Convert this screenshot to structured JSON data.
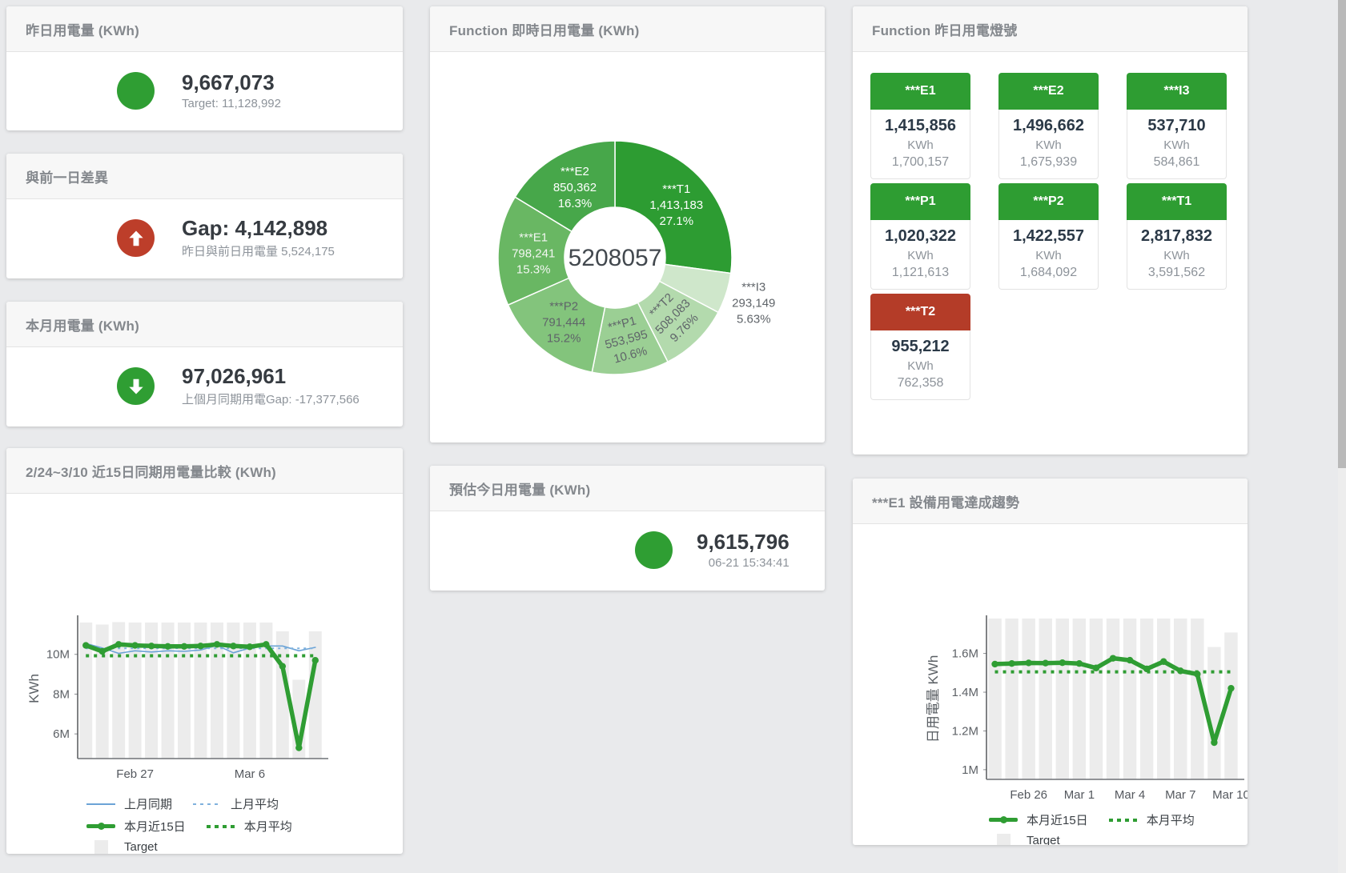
{
  "page": {
    "background": "#e9eaec"
  },
  "colors": {
    "green": "#2f9e33",
    "red": "#bd3e2a",
    "blue_line": "#6ba3d6",
    "target_bar": "#ececec"
  },
  "cards": {
    "yesterday": {
      "title": "昨日用電量 (KWh)",
      "value": "9,667,073",
      "subtitle": "Target: 11,128,992",
      "status": "green"
    },
    "day_gap": {
      "title": "與前一日差異",
      "value": "Gap: 4,142,898",
      "subtitle": "昨日與前日用電量 5,524,175",
      "status": "red",
      "icon": "arrow-up"
    },
    "month": {
      "title": "本月用電量 (KWh)",
      "value": "97,026,961",
      "subtitle": "上個月同期用電Gap: -17,377,566",
      "status": "green",
      "icon": "arrow-down"
    },
    "realtime": {
      "title": "Function 即時日用電量 (KWh)"
    },
    "estimate": {
      "title": "預估今日用電量 (KWh)",
      "value": "9,615,796",
      "subtitle": "06-21 15:34:41",
      "status": "green"
    },
    "lights": {
      "title": "Function 昨日用電燈號",
      "tiles": [
        {
          "name": "***E1",
          "value": "1,415,856",
          "unit": "KWh",
          "target": "1,700,157",
          "status": "green"
        },
        {
          "name": "***E2",
          "value": "1,496,662",
          "unit": "KWh",
          "target": "1,675,939",
          "status": "green"
        },
        {
          "name": "***I3",
          "value": "537,710",
          "unit": "KWh",
          "target": "584,861",
          "status": "green"
        },
        {
          "name": "***P1",
          "value": "1,020,322",
          "unit": "KWh",
          "target": "1,121,613",
          "status": "green"
        },
        {
          "name": "***P2",
          "value": "1,422,557",
          "unit": "KWh",
          "target": "1,684,092",
          "status": "green"
        },
        {
          "name": "***T1",
          "value": "2,817,832",
          "unit": "KWh",
          "target": "3,591,562",
          "status": "green"
        },
        {
          "name": "***T2",
          "value": "955,212",
          "unit": "KWh",
          "target": "762,358",
          "status": "red"
        }
      ]
    },
    "compare": {
      "title": "2/24~3/10 近15日同期用電量比較 (KWh)",
      "legend_rows": [
        [
          {
            "label": "上月同期",
            "marker": "mk-line-blue"
          },
          {
            "label": "上月平均",
            "marker": "mk-dash-blue"
          }
        ],
        [
          {
            "label": "本月近15日",
            "marker": "mk-line-green"
          },
          {
            "label": "本月平均",
            "marker": "mk-dot-green"
          }
        ],
        [
          {
            "label": "Target",
            "marker": "mk-square-gray"
          }
        ]
      ]
    },
    "trend": {
      "title": "***E1 設備用電達成趨勢",
      "legend_rows": [
        [
          {
            "label": "本月近15日",
            "marker": "mk-line-green"
          },
          {
            "label": "本月平均",
            "marker": "mk-dot-green"
          }
        ],
        [
          {
            "label": "Target",
            "marker": "mk-square-gray"
          }
        ]
      ]
    }
  },
  "chart_data": [
    {
      "id": "realtime-donut",
      "type": "pie",
      "title": "Function 即時日用電量 (KWh)",
      "center_total": "5208057",
      "slices": [
        {
          "name": "***T1",
          "value": 1413183,
          "value_text": "1,413,183",
          "pct": 27.1,
          "pct_text": "27.1%",
          "color": "#2d9c32",
          "label_color": "#ffffff"
        },
        {
          "name": "***I3",
          "value": 293149,
          "value_text": "293,149",
          "pct": 5.63,
          "pct_text": "5.63%",
          "color": "#cfe7cb",
          "label_color": "#5f6469",
          "label_outside": true
        },
        {
          "name": "***T2",
          "value": 508083,
          "value_text": "508,083",
          "pct": 9.76,
          "pct_text": "9.76%",
          "color": "#b3daad",
          "label_color": "#5f6469",
          "rotate": -45
        },
        {
          "name": "***P1",
          "value": 553595,
          "value_text": "553,595",
          "pct": 10.6,
          "pct_text": "10.6%",
          "color": "#9bcf94",
          "label_color": "#5f6469",
          "rotate": -15
        },
        {
          "name": "***P2",
          "value": 791444,
          "value_text": "791,444",
          "pct": 15.2,
          "pct_text": "15.2%",
          "color": "#83c47c",
          "label_color": "#5f6469"
        },
        {
          "name": "***E1",
          "value": 798241,
          "value_text": "798,241",
          "pct": 15.3,
          "pct_text": "15.3%",
          "color": "#69b763",
          "label_color": "#f2f6f1"
        },
        {
          "name": "***E2",
          "value": 850362,
          "value_text": "850,362",
          "pct": 16.3,
          "pct_text": "16.3%",
          "color": "#47a74a",
          "label_color": "#ffffff"
        }
      ]
    },
    {
      "id": "compare-15d",
      "type": "line",
      "title": "2/24~3/10 近15日同期用電量比較 (KWh)",
      "ylabel": "KWh",
      "unit": "M",
      "ylim": [
        4.76,
        11.8
      ],
      "yticks": [
        {
          "v": 6,
          "label": "6M"
        },
        {
          "v": 8,
          "label": "8M"
        },
        {
          "v": 10,
          "label": "10M"
        }
      ],
      "categories": [
        "Feb 24",
        "Feb 25",
        "Feb 26",
        "Feb 27",
        "Feb 28",
        "Mar 1",
        "Mar 2",
        "Mar 3",
        "Mar 4",
        "Mar 5",
        "Mar 6",
        "Mar 7",
        "Mar 8",
        "Mar 9",
        "Mar 10"
      ],
      "xticks": [
        {
          "i": 3,
          "label": "Feb 27"
        },
        {
          "i": 10,
          "label": "Mar 6"
        }
      ],
      "target_bars": [
        11.6,
        11.5,
        11.62,
        11.6,
        11.6,
        11.6,
        11.6,
        11.6,
        11.6,
        11.6,
        11.6,
        11.6,
        11.16,
        8.72,
        11.16
      ],
      "series": [
        {
          "name": "上月同期",
          "color": "#6ba3d6",
          "width": 1.6,
          "values": [
            10.55,
            10.32,
            10.05,
            10.18,
            10.12,
            10.18,
            10.15,
            10.22,
            10.45,
            10.08,
            10.32,
            10.42,
            10.42,
            10.18,
            10.35
          ]
        },
        {
          "name": "上月平均",
          "color": "#7fb1dd",
          "width": 2,
          "dash": "3 5",
          "const": 10.3
        },
        {
          "name": "本月平均",
          "color": "#2f9d33",
          "width": 4,
          "dash": "4 6",
          "const": 9.93
        },
        {
          "name": "本月近15日",
          "color": "#2f9d33",
          "width": 5.5,
          "markers": true,
          "values": [
            10.45,
            10.15,
            10.5,
            10.45,
            10.42,
            10.4,
            10.4,
            10.42,
            10.5,
            10.42,
            10.38,
            10.5,
            9.4,
            5.3,
            9.7
          ]
        }
      ]
    },
    {
      "id": "e1-trend",
      "type": "line",
      "title": "***E1 設備用電達成趨勢",
      "ylabel": "日用電量 KWh",
      "unit": "M",
      "ylim": [
        0.95,
        1.78
      ],
      "yticks": [
        {
          "v": 1,
          "label": "1M"
        },
        {
          "v": 1.2,
          "label": "1.2M"
        },
        {
          "v": 1.4,
          "label": "1.4M"
        },
        {
          "v": 1.6,
          "label": "1.6M"
        }
      ],
      "categories": [
        "Feb 24",
        "Feb 25",
        "Feb 26",
        "Feb 27",
        "Feb 28",
        "Mar 1",
        "Mar 2",
        "Mar 3",
        "Mar 4",
        "Mar 5",
        "Mar 6",
        "Mar 7",
        "Mar 8",
        "Mar 9",
        "Mar 10"
      ],
      "xticks": [
        {
          "i": 2,
          "label": "Feb 26"
        },
        {
          "i": 5,
          "label": "Mar 1"
        },
        {
          "i": 8,
          "label": "Mar 4"
        },
        {
          "i": 11,
          "label": "Mar 7"
        },
        {
          "i": 14,
          "label": "Mar 10"
        }
      ],
      "target_bars": [
        1.78,
        1.78,
        1.78,
        1.78,
        1.78,
        1.78,
        1.78,
        1.78,
        1.78,
        1.78,
        1.78,
        1.78,
        1.78,
        1.633,
        1.708
      ],
      "series": [
        {
          "name": "本月平均",
          "color": "#2f9d33",
          "width": 4,
          "dash": "4 6",
          "const": 1.505
        },
        {
          "name": "本月近15日",
          "color": "#2f9d33",
          "width": 5.5,
          "markers": true,
          "values": [
            1.545,
            1.548,
            1.551,
            1.55,
            1.552,
            1.548,
            1.525,
            1.575,
            1.565,
            1.52,
            1.558,
            1.51,
            1.493,
            1.14,
            1.42
          ]
        }
      ]
    }
  ]
}
